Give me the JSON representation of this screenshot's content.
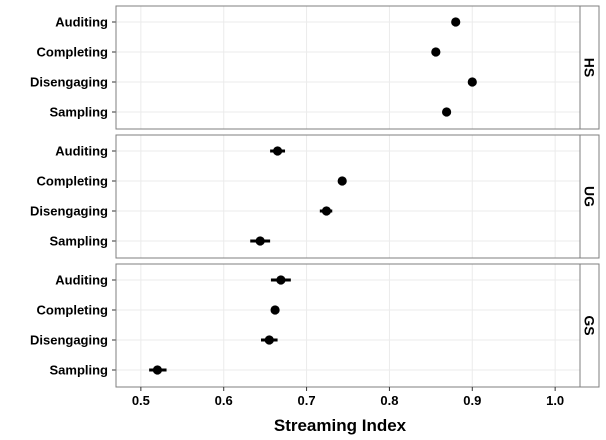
{
  "chart_data": {
    "type": "scatter",
    "title": "",
    "xlabel": "Streaming Index",
    "ylabel": "",
    "xlim": [
      0.47,
      1.03
    ],
    "xticks": [
      0.5,
      0.6,
      0.7,
      0.8,
      0.9,
      1.0
    ],
    "xtick_labels": [
      "0.5",
      "0.6",
      "0.7",
      "0.8",
      "0.9",
      "1.0"
    ],
    "categories": [
      "Auditing",
      "Completing",
      "Disengaging",
      "Sampling"
    ],
    "grid": true,
    "point_color": "#000000",
    "panel_border_color": "#7f7f7f",
    "grid_color": "#ebebeb",
    "panels": [
      {
        "label": "HS",
        "points": [
          {
            "category": "Auditing",
            "value": 0.88,
            "low": 0.877,
            "high": 0.883
          },
          {
            "category": "Completing",
            "value": 0.856,
            "low": 0.853,
            "high": 0.859
          },
          {
            "category": "Disengaging",
            "value": 0.9,
            "low": 0.897,
            "high": 0.903
          },
          {
            "category": "Sampling",
            "value": 0.869,
            "low": 0.864,
            "high": 0.874
          }
        ]
      },
      {
        "label": "UG",
        "points": [
          {
            "category": "Auditing",
            "value": 0.665,
            "low": 0.656,
            "high": 0.674
          },
          {
            "category": "Completing",
            "value": 0.743,
            "low": 0.739,
            "high": 0.747
          },
          {
            "category": "Disengaging",
            "value": 0.724,
            "low": 0.716,
            "high": 0.731
          },
          {
            "category": "Sampling",
            "value": 0.644,
            "low": 0.632,
            "high": 0.656
          }
        ]
      },
      {
        "label": "GS",
        "points": [
          {
            "category": "Auditing",
            "value": 0.669,
            "low": 0.657,
            "high": 0.681
          },
          {
            "category": "Completing",
            "value": 0.662,
            "low": 0.658,
            "high": 0.666
          },
          {
            "category": "Disengaging",
            "value": 0.655,
            "low": 0.645,
            "high": 0.665
          },
          {
            "category": "Sampling",
            "value": 0.52,
            "low": 0.51,
            "high": 0.531
          }
        ]
      }
    ]
  }
}
